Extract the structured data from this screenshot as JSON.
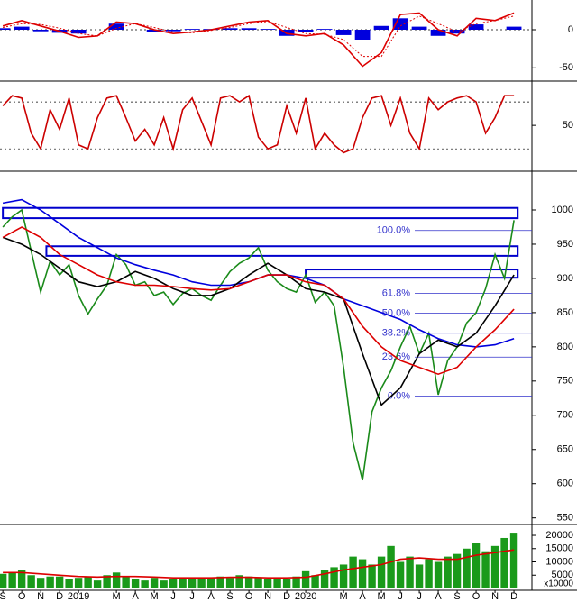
{
  "chart_data": [
    {
      "type": "line",
      "xlim": [
        -0.15,
        27.95
      ],
      "ylim": [
        -65,
        39
      ],
      "yticks": [
        0,
        -50
      ],
      "grid": true,
      "series": [
        {
          "type": "bar",
          "color": "#0000dd",
          "x": [
            0,
            1,
            2,
            3,
            4,
            5,
            6,
            7,
            8,
            9,
            10,
            11,
            12,
            13,
            14,
            15,
            16,
            17,
            18,
            19,
            20,
            21,
            22,
            23,
            24,
            25,
            26,
            27
          ],
          "values": [
            2,
            4,
            -2,
            -4,
            -5,
            0,
            8,
            0,
            -3,
            -2,
            1,
            1,
            2,
            2,
            1,
            -8,
            -3,
            1,
            -7,
            -13,
            5,
            15,
            4,
            -8,
            -5,
            7,
            0,
            4
          ]
        },
        {
          "color": "#dd0000",
          "x": [
            0,
            1,
            2,
            3,
            4,
            5,
            6,
            7,
            8,
            9,
            10,
            11,
            12,
            13,
            14,
            15,
            16,
            17,
            18,
            19,
            20,
            21,
            22,
            23,
            24,
            25,
            26,
            27
          ],
          "values": [
            5,
            12,
            5,
            -2,
            -10,
            -8,
            10,
            8,
            0,
            -5,
            -3,
            0,
            5,
            10,
            12,
            -5,
            -8,
            -5,
            -20,
            -48,
            -30,
            20,
            22,
            0,
            -8,
            15,
            12,
            22
          ]
        },
        {
          "color": "#dd0000",
          "dotted": true,
          "x": [
            0,
            1,
            2,
            3,
            4,
            5,
            6,
            7,
            8,
            9,
            10,
            11,
            12,
            13,
            14,
            15,
            16,
            17,
            18,
            19,
            20,
            21,
            22,
            23,
            24,
            25,
            26,
            27
          ],
          "values": [
            3,
            8,
            7,
            2,
            -5,
            -8,
            2,
            8,
            3,
            -3,
            -4,
            -1,
            3,
            8,
            11,
            3,
            -5,
            -6,
            -13,
            -35,
            -35,
            5,
            18,
            8,
            -3,
            8,
            12,
            18
          ]
        }
      ]
    },
    {
      "type": "line",
      "xlim": [
        -0.15,
        27.95
      ],
      "ylim": [
        -4,
        102
      ],
      "yticks": [
        50
      ],
      "levels": [
        20,
        80
      ],
      "series": [
        {
          "color": "#cc0000",
          "x": [
            0,
            0.5,
            1,
            1.5,
            2,
            2.5,
            3,
            3.5,
            4,
            4.5,
            5,
            5.5,
            6,
            6.5,
            7,
            7.5,
            8,
            8.5,
            9,
            9.5,
            10,
            10.5,
            11,
            11.5,
            12,
            12.5,
            13,
            13.5,
            14,
            14.5,
            15,
            15.5,
            16,
            16.5,
            17,
            17.5,
            18,
            18.5,
            19,
            19.5,
            20,
            20.5,
            21,
            21.5,
            22,
            22.5,
            23,
            23.5,
            24,
            24.5,
            25,
            25.5,
            26,
            26.5,
            27
          ],
          "values": [
            75,
            88,
            85,
            40,
            20,
            70,
            45,
            85,
            25,
            20,
            60,
            85,
            88,
            60,
            30,
            45,
            25,
            60,
            20,
            70,
            85,
            55,
            25,
            85,
            88,
            80,
            88,
            35,
            20,
            25,
            75,
            40,
            85,
            20,
            40,
            25,
            15,
            20,
            60,
            85,
            88,
            50,
            85,
            40,
            20,
            85,
            70,
            80,
            85,
            88,
            80,
            40,
            60,
            88,
            88
          ]
        }
      ]
    },
    {
      "type": "line",
      "xlim": [
        -0.15,
        27.95
      ],
      "ylim": [
        543,
        1054
      ],
      "yticks": [
        550,
        600,
        650,
        700,
        750,
        800,
        850,
        900,
        950,
        1000
      ],
      "zones": [
        {
          "from": 988,
          "to": 1003,
          "start": 0,
          "end": 27.2
        },
        {
          "from": 933,
          "to": 947,
          "start": 2.3,
          "end": 27.2
        },
        {
          "from": 901,
          "to": 913,
          "start": 16,
          "end": 27.2
        }
      ],
      "fib": [
        {
          "label": "100.0%",
          "value": 970
        },
        {
          "label": "61.8%",
          "value": 878
        },
        {
          "label": "50.0%",
          "value": 849
        },
        {
          "label": "38.2%",
          "value": 820
        },
        {
          "label": "23.6%",
          "value": 785
        },
        {
          "label": "0.0%",
          "value": 728
        }
      ],
      "series": [
        {
          "color": "#1a8a1a",
          "x": [
            0,
            0.5,
            1,
            1.5,
            2,
            2.5,
            3,
            3.5,
            4,
            4.5,
            5,
            5.5,
            6,
            6.5,
            7,
            7.5,
            8,
            8.5,
            9,
            9.5,
            10,
            10.5,
            11,
            11.5,
            12,
            12.5,
            13,
            13.5,
            14,
            14.5,
            15,
            15.5,
            16,
            16.5,
            17,
            17.5,
            18,
            18.5,
            19,
            19.5,
            20,
            20.5,
            21,
            21.5,
            22,
            22.5,
            23,
            23.5,
            24,
            24.5,
            25,
            25.5,
            26,
            26.5,
            27
          ],
          "values": [
            975,
            990,
            1000,
            940,
            880,
            925,
            905,
            920,
            875,
            848,
            870,
            890,
            935,
            920,
            890,
            895,
            875,
            880,
            862,
            878,
            885,
            875,
            868,
            890,
            910,
            922,
            930,
            945,
            912,
            895,
            885,
            880,
            905,
            865,
            880,
            860,
            770,
            660,
            605,
            705,
            740,
            765,
            800,
            830,
            790,
            820,
            730,
            780,
            800,
            835,
            850,
            885,
            935,
            900,
            985
          ]
        },
        {
          "color": "#0000dd",
          "x": [
            0,
            1,
            2,
            3,
            4,
            5,
            6,
            7,
            8,
            9,
            10,
            11,
            12,
            13,
            14,
            15,
            16,
            17,
            18,
            19,
            20,
            21,
            22,
            23,
            24,
            25,
            26,
            27
          ],
          "values": [
            1010,
            1015,
            1000,
            980,
            960,
            945,
            930,
            920,
            912,
            905,
            895,
            890,
            890,
            895,
            905,
            905,
            900,
            890,
            870,
            860,
            850,
            840,
            825,
            812,
            803,
            800,
            803,
            812
          ]
        },
        {
          "color": "#000000",
          "x": [
            0,
            1,
            2,
            3,
            4,
            5,
            6,
            7,
            8,
            9,
            10,
            11,
            12,
            13,
            14,
            15,
            16,
            17,
            18,
            19,
            20,
            21,
            22,
            23,
            24,
            25,
            26,
            27
          ],
          "values": [
            960,
            950,
            935,
            915,
            895,
            888,
            895,
            910,
            900,
            885,
            875,
            875,
            885,
            905,
            922,
            905,
            885,
            880,
            870,
            790,
            715,
            740,
            790,
            810,
            800,
            820,
            860,
            905
          ]
        },
        {
          "color": "#dd0000",
          "x": [
            0,
            1,
            2,
            3,
            4,
            5,
            6,
            7,
            8,
            9,
            10,
            11,
            12,
            13,
            14,
            15,
            16,
            17,
            18,
            19,
            20,
            21,
            22,
            23,
            24,
            25,
            26,
            27
          ],
          "values": [
            960,
            975,
            960,
            935,
            920,
            905,
            895,
            890,
            890,
            888,
            885,
            883,
            885,
            895,
            905,
            905,
            895,
            890,
            870,
            830,
            800,
            780,
            770,
            760,
            770,
            800,
            825,
            855
          ]
        }
      ]
    },
    {
      "type": "bar",
      "xlim": [
        -0.15,
        27.95
      ],
      "ylim": [
        0,
        23400
      ],
      "yticks": [
        20000,
        15000,
        10000,
        5000
      ],
      "unit": "x10000",
      "xticks": [
        {
          "value": 0,
          "label": "S"
        },
        {
          "value": 1,
          "label": "O"
        },
        {
          "value": 2,
          "label": "N"
        },
        {
          "value": 3,
          "label": "D"
        },
        {
          "value": 4,
          "label": "2019"
        },
        {
          "value": 6,
          "label": "M"
        },
        {
          "value": 7,
          "label": "A"
        },
        {
          "value": 8,
          "label": "M"
        },
        {
          "value": 9,
          "label": "J"
        },
        {
          "value": 10,
          "label": "J"
        },
        {
          "value": 11,
          "label": "A"
        },
        {
          "value": 12,
          "label": "S"
        },
        {
          "value": 13,
          "label": "O"
        },
        {
          "value": 14,
          "label": "N"
        },
        {
          "value": 15,
          "label": "D"
        },
        {
          "value": 16,
          "label": "2020"
        },
        {
          "value": 18,
          "label": "M"
        },
        {
          "value": 19,
          "label": "A"
        },
        {
          "value": 20,
          "label": "M"
        },
        {
          "value": 21,
          "label": "J"
        },
        {
          "value": 22,
          "label": "J"
        },
        {
          "value": 23,
          "label": "A"
        },
        {
          "value": 24,
          "label": "S"
        },
        {
          "value": 25,
          "label": "O"
        },
        {
          "value": 26,
          "label": "N"
        },
        {
          "value": 27,
          "label": "D"
        }
      ],
      "series": [
        {
          "color": "#1a9a1a",
          "x": [
            0,
            0.5,
            1,
            1.5,
            2,
            2.5,
            3,
            3.5,
            4,
            4.5,
            5,
            5.5,
            6,
            6.5,
            7,
            7.5,
            8,
            8.5,
            9,
            9.5,
            10,
            10.5,
            11,
            11.5,
            12,
            12.5,
            13,
            13.5,
            14,
            14.5,
            15,
            15.5,
            16,
            16.5,
            17,
            17.5,
            18,
            18.5,
            19,
            19.5,
            20,
            20.5,
            21,
            21.5,
            22,
            22.5,
            23,
            23.5,
            24,
            24.5,
            25,
            25.5,
            26,
            26.5,
            27
          ],
          "values": [
            5500,
            6000,
            7000,
            5000,
            4000,
            4500,
            4500,
            3500,
            4000,
            4500,
            3000,
            5000,
            6000,
            4500,
            3500,
            3000,
            4000,
            3000,
            3500,
            4000,
            3500,
            3500,
            4000,
            4500,
            4000,
            5000,
            4500,
            4000,
            3500,
            4000,
            3500,
            4500,
            6500,
            5000,
            7000,
            8000,
            9000,
            12000,
            11000,
            9000,
            12000,
            16000,
            10000,
            12000,
            9000,
            11000,
            10000,
            12000,
            13000,
            15000,
            17000,
            14000,
            16000,
            19000,
            21000
          ]
        },
        {
          "type": "line",
          "color": "#dd0000",
          "x": [
            0,
            1,
            2,
            3,
            4,
            5,
            6,
            7,
            8,
            9,
            10,
            11,
            12,
            13,
            14,
            15,
            16,
            17,
            18,
            19,
            20,
            21,
            22,
            23,
            24,
            25,
            26,
            27
          ],
          "values": [
            6000,
            6000,
            5500,
            5000,
            4500,
            4300,
            4500,
            4500,
            4300,
            4000,
            4000,
            4000,
            4200,
            4200,
            4000,
            4000,
            4200,
            5500,
            7000,
            8000,
            9000,
            11000,
            11500,
            11000,
            11000,
            12500,
            13500,
            14500
          ]
        }
      ]
    }
  ]
}
